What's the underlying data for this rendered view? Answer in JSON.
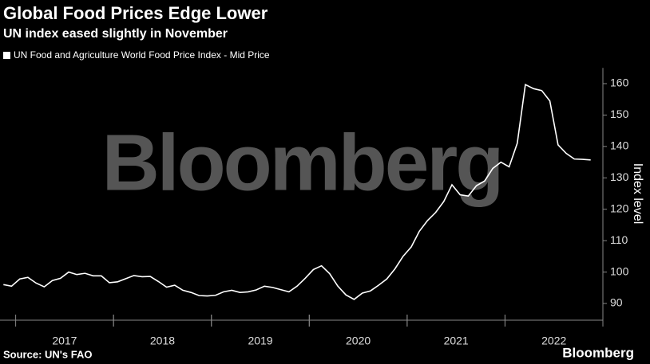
{
  "chart_data": {
    "type": "line",
    "title": "Global Food Prices Edge Lower",
    "subtitle": "UN index eased slightly in November",
    "watermark": "Bloomberg",
    "source": "Source: UN's FAO",
    "brand": "Bloomberg",
    "y_label": "Index level",
    "x": [
      2016.875,
      2016.958,
      2017.042,
      2017.125,
      2017.208,
      2017.292,
      2017.375,
      2017.458,
      2017.542,
      2017.625,
      2017.708,
      2017.792,
      2017.875,
      2017.958,
      2018.042,
      2018.125,
      2018.208,
      2018.292,
      2018.375,
      2018.458,
      2018.542,
      2018.625,
      2018.708,
      2018.792,
      2018.875,
      2018.958,
      2019.042,
      2019.125,
      2019.208,
      2019.292,
      2019.375,
      2019.458,
      2019.542,
      2019.625,
      2019.708,
      2019.792,
      2019.875,
      2019.958,
      2020.042,
      2020.125,
      2020.208,
      2020.292,
      2020.375,
      2020.458,
      2020.542,
      2020.625,
      2020.708,
      2020.792,
      2020.875,
      2020.958,
      2021.042,
      2021.125,
      2021.208,
      2021.292,
      2021.375,
      2021.458,
      2021.542,
      2021.625,
      2021.708,
      2021.792,
      2021.875,
      2021.958,
      2022.042,
      2022.125,
      2022.208,
      2022.292,
      2022.375,
      2022.458,
      2022.542,
      2022.625,
      2022.708,
      2022.792,
      2022.875
    ],
    "series": [
      {
        "name": "UN Food and Agriculture World Food Price Index - Mid Price",
        "color": "#ffffff",
        "values": [
          96.0,
          95.5,
          97.8,
          98.3,
          96.5,
          95.3,
          97.3,
          98.0,
          100.0,
          99.2,
          99.6,
          98.8,
          98.8,
          96.6,
          96.9,
          97.9,
          98.9,
          98.5,
          98.6,
          97.0,
          95.2,
          95.8,
          94.2,
          93.5,
          92.5,
          92.4,
          92.6,
          93.7,
          94.2,
          93.5,
          93.7,
          94.3,
          95.5,
          95.1,
          94.4,
          93.7,
          95.5,
          98.0,
          100.8,
          102.0,
          99.5,
          95.5,
          92.7,
          91.3,
          93.3,
          94.0,
          95.8,
          97.8,
          101.0,
          105.0,
          108.0,
          113.0,
          116.4,
          119.0,
          122.5,
          127.8,
          124.6,
          124.2,
          127.5,
          129.0,
          133.0,
          135.0,
          133.5,
          141.0,
          159.7,
          158.4,
          157.8,
          154.5,
          140.5,
          137.8,
          136.0,
          135.9,
          135.7
        ]
      }
    ],
    "xlim": [
      2016.84,
      2023.0
    ],
    "xticks": [
      {
        "value": 2017.5,
        "label": "2017"
      },
      {
        "value": 2018.5,
        "label": "2018"
      },
      {
        "value": 2019.5,
        "label": "2019"
      },
      {
        "value": 2020.5,
        "label": "2020"
      },
      {
        "value": 2021.5,
        "label": "2021"
      },
      {
        "value": 2022.5,
        "label": "2022"
      }
    ],
    "ylim": [
      85,
      165
    ],
    "yticks": [
      90,
      100,
      110,
      120,
      130,
      140,
      150,
      160
    ],
    "grid": false
  }
}
